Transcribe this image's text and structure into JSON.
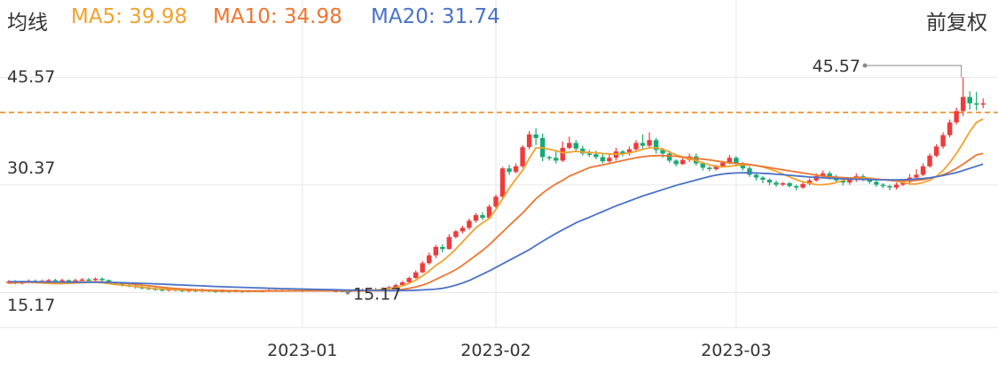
{
  "header": {
    "title": "均线",
    "adjust": "前复权",
    "ma": [
      {
        "label": "MA5:",
        "value": "39.98",
        "color": "#f0a22e"
      },
      {
        "label": "MA10:",
        "value": "34.98",
        "color": "#ec7631"
      },
      {
        "label": "MA20:",
        "value": "31.74",
        "color": "#4a72c9"
      }
    ]
  },
  "colors": {
    "up": "#ee3b3b",
    "down": "#1aa872",
    "ref_line": "#f08a24",
    "grid": "#e6e6e6",
    "text": "#333333"
  },
  "chart_data": {
    "type": "candlestick",
    "y_ticks": [
      "45.57",
      "30.37",
      "15.17"
    ],
    "ylim": [
      10.2,
      51.5
    ],
    "x_ticks": [
      {
        "label": "2023-01",
        "index": 44
      },
      {
        "label": "2023-02",
        "index": 73
      },
      {
        "label": "2023-03",
        "index": 109
      }
    ],
    "reference_line": 40.6,
    "max_annotation": {
      "label": "45.57",
      "index": 143,
      "value": 45.57
    },
    "min_annotation": {
      "label": "15.17",
      "index": 51,
      "value": 15.17
    },
    "candles": [
      [
        16.6,
        16.7,
        16.9,
        16.4
      ],
      [
        16.7,
        16.5,
        16.9,
        16.3
      ],
      [
        16.5,
        16.6,
        16.8,
        16.3
      ],
      [
        16.6,
        16.8,
        17.0,
        16.5
      ],
      [
        16.8,
        16.7,
        17.0,
        16.5
      ],
      [
        16.7,
        16.8,
        17.0,
        16.6
      ],
      [
        16.8,
        16.9,
        17.1,
        16.7
      ],
      [
        16.9,
        16.8,
        17.1,
        16.6
      ],
      [
        16.8,
        16.9,
        17.1,
        16.7
      ],
      [
        16.9,
        16.8,
        17.0,
        16.6
      ],
      [
        16.8,
        16.9,
        17.1,
        16.7
      ],
      [
        16.9,
        17.0,
        17.2,
        16.8
      ],
      [
        17.0,
        16.9,
        17.2,
        16.7
      ],
      [
        16.9,
        17.1,
        17.3,
        16.8
      ],
      [
        17.1,
        16.9,
        17.3,
        16.7
      ],
      [
        16.9,
        16.6,
        17.0,
        16.4
      ],
      [
        16.6,
        16.4,
        16.7,
        16.2
      ],
      [
        16.4,
        16.2,
        16.6,
        16.0
      ],
      [
        16.2,
        16.1,
        16.4,
        15.9
      ],
      [
        16.1,
        15.9,
        16.3,
        15.7
      ],
      [
        15.9,
        15.8,
        16.1,
        15.6
      ],
      [
        15.8,
        15.7,
        16.0,
        15.5
      ],
      [
        15.7,
        15.6,
        15.9,
        15.4
      ],
      [
        15.6,
        15.5,
        15.8,
        15.3
      ],
      [
        15.5,
        15.6,
        15.8,
        15.3
      ],
      [
        15.6,
        15.5,
        15.8,
        15.3
      ],
      [
        15.5,
        15.4,
        15.7,
        15.2
      ],
      [
        15.4,
        15.5,
        15.7,
        15.2
      ],
      [
        15.5,
        15.4,
        15.7,
        15.2
      ],
      [
        15.4,
        15.5,
        15.7,
        15.2
      ],
      [
        15.5,
        15.4,
        15.6,
        15.2
      ],
      [
        15.4,
        15.3,
        15.6,
        15.1
      ],
      [
        15.3,
        15.4,
        15.6,
        15.2
      ],
      [
        15.4,
        15.3,
        15.5,
        15.1
      ],
      [
        15.3,
        15.4,
        15.6,
        15.2
      ],
      [
        15.4,
        15.3,
        15.5,
        15.1
      ],
      [
        15.3,
        15.4,
        15.5,
        15.2
      ],
      [
        15.4,
        15.3,
        15.5,
        15.2
      ],
      [
        15.3,
        15.4,
        15.5,
        15.2
      ],
      [
        15.4,
        15.5,
        15.7,
        15.3
      ],
      [
        15.5,
        15.4,
        15.6,
        15.3
      ],
      [
        15.4,
        15.5,
        15.6,
        15.3
      ],
      [
        15.5,
        15.4,
        15.6,
        15.3
      ],
      [
        15.4,
        15.5,
        15.6,
        15.3
      ],
      [
        15.5,
        15.4,
        15.6,
        15.2
      ],
      [
        15.4,
        15.5,
        15.6,
        15.3
      ],
      [
        15.5,
        15.4,
        15.6,
        15.3
      ],
      [
        15.4,
        15.5,
        15.6,
        15.3
      ],
      [
        15.5,
        15.4,
        15.6,
        15.3
      ],
      [
        15.4,
        15.4,
        15.6,
        15.3
      ],
      [
        15.4,
        15.3,
        15.5,
        15.2
      ],
      [
        15.3,
        15.4,
        15.5,
        15.17
      ],
      [
        15.4,
        15.5,
        15.6,
        15.3
      ],
      [
        15.5,
        15.5,
        15.7,
        15.4
      ],
      [
        15.5,
        15.6,
        15.7,
        15.4
      ],
      [
        15.6,
        15.5,
        15.8,
        15.4
      ],
      [
        15.5,
        15.7,
        15.9,
        15.4
      ],
      [
        15.7,
        15.9,
        16.1,
        15.6
      ],
      [
        15.9,
        16.2,
        16.4,
        15.8
      ],
      [
        16.2,
        16.6,
        16.8,
        16.1
      ],
      [
        16.6,
        17.2,
        17.4,
        16.5
      ],
      [
        17.2,
        18.0,
        18.3,
        17.1
      ],
      [
        18.0,
        19.3,
        19.6,
        17.9
      ],
      [
        19.3,
        20.4,
        20.8,
        19.1
      ],
      [
        20.4,
        21.6,
        21.9,
        20.0
      ],
      [
        21.6,
        21.3,
        22.0,
        20.8
      ],
      [
        21.3,
        23.0,
        23.4,
        21.2
      ],
      [
        23.0,
        23.8,
        24.0,
        22.8
      ],
      [
        23.8,
        24.3,
        24.6,
        23.5
      ],
      [
        24.3,
        25.3,
        25.6,
        24.0
      ],
      [
        25.3,
        26.1,
        26.4,
        25.0
      ],
      [
        26.1,
        25.7,
        26.5,
        25.4
      ],
      [
        25.7,
        27.3,
        27.6,
        25.6
      ],
      [
        27.3,
        28.7,
        29.0,
        27.1
      ],
      [
        28.7,
        32.7,
        32.9,
        28.5
      ],
      [
        32.7,
        32.2,
        33.2,
        31.8
      ],
      [
        32.2,
        33.0,
        33.4,
        32.0
      ],
      [
        33.0,
        35.7,
        36.0,
        32.8
      ],
      [
        35.7,
        37.5,
        38.0,
        35.4
      ],
      [
        37.5,
        37.0,
        38.4,
        36.0
      ],
      [
        37.0,
        34.3,
        37.6,
        33.7
      ],
      [
        34.3,
        34.2,
        34.5,
        33.8
      ],
      [
        34.2,
        33.8,
        35.1,
        33.4
      ],
      [
        33.8,
        35.6,
        36.5,
        33.6
      ],
      [
        35.6,
        36.3,
        37.2,
        35.4
      ],
      [
        36.3,
        35.5,
        36.7,
        35.0
      ],
      [
        35.5,
        34.8,
        35.9,
        34.5
      ],
      [
        34.8,
        34.7,
        35.3,
        34.3
      ],
      [
        34.7,
        34.3,
        35.2,
        34.0
      ],
      [
        34.3,
        33.7,
        34.8,
        33.4
      ],
      [
        33.7,
        34.2,
        34.7,
        33.3
      ],
      [
        34.2,
        35.1,
        35.6,
        33.8
      ],
      [
        35.1,
        34.8,
        35.3,
        34.4
      ],
      [
        34.8,
        35.4,
        35.8,
        34.5
      ],
      [
        35.4,
        36.3,
        36.7,
        35.2
      ],
      [
        36.3,
        35.9,
        37.5,
        35.5
      ],
      [
        35.9,
        36.7,
        37.8,
        35.6
      ],
      [
        36.7,
        35.3,
        37.0,
        34.8
      ],
      [
        35.3,
        34.8,
        35.6,
        34.2
      ],
      [
        34.8,
        33.8,
        35.2,
        33.5
      ],
      [
        33.8,
        33.3,
        34.0,
        33.0
      ],
      [
        33.3,
        33.9,
        34.3,
        33.2
      ],
      [
        33.9,
        34.4,
        34.8,
        33.6
      ],
      [
        34.4,
        33.4,
        34.8,
        33.1
      ],
      [
        33.4,
        32.8,
        33.6,
        32.4
      ],
      [
        32.8,
        32.6,
        33.0,
        32.3
      ],
      [
        32.6,
        33.0,
        33.2,
        32.4
      ],
      [
        33.0,
        33.5,
        33.8,
        32.8
      ],
      [
        33.5,
        34.2,
        34.6,
        33.3
      ],
      [
        34.2,
        33.4,
        34.4,
        33.1
      ],
      [
        33.4,
        32.7,
        33.6,
        32.4
      ],
      [
        32.7,
        31.8,
        33.0,
        31.5
      ],
      [
        31.8,
        31.4,
        32.0,
        31.0
      ],
      [
        31.4,
        31.1,
        31.6,
        30.6
      ],
      [
        31.1,
        30.7,
        31.3,
        30.3
      ],
      [
        30.7,
        30.4,
        31.0,
        30.1
      ],
      [
        30.4,
        30.6,
        30.8,
        30.2
      ],
      [
        30.6,
        30.2,
        30.8,
        30.0
      ],
      [
        30.2,
        30.0,
        30.4,
        29.6
      ],
      [
        30.0,
        30.5,
        30.8,
        29.8
      ],
      [
        30.5,
        31.0,
        31.3,
        30.3
      ],
      [
        31.0,
        31.6,
        32.0,
        30.8
      ],
      [
        31.6,
        32.0,
        32.4,
        31.3
      ],
      [
        32.0,
        31.5,
        32.3,
        31.1
      ],
      [
        31.5,
        31.0,
        31.8,
        30.6
      ],
      [
        31.0,
        30.7,
        31.2,
        30.3
      ],
      [
        30.7,
        31.1,
        31.4,
        30.4
      ],
      [
        31.1,
        31.6,
        32.0,
        30.8
      ],
      [
        31.6,
        31.2,
        31.9,
        30.9
      ],
      [
        31.2,
        30.8,
        31.4,
        30.5
      ],
      [
        30.8,
        30.4,
        31.0,
        30.1
      ],
      [
        30.4,
        30.2,
        30.6,
        29.9
      ],
      [
        30.2,
        30.0,
        30.4,
        29.6
      ],
      [
        30.0,
        30.4,
        30.7,
        29.7
      ],
      [
        30.4,
        30.8,
        31.1,
        30.2
      ],
      [
        30.8,
        31.4,
        31.9,
        30.6
      ],
      [
        31.4,
        31.8,
        32.6,
        31.2
      ],
      [
        31.8,
        33.0,
        33.4,
        31.6
      ],
      [
        33.0,
        34.5,
        34.8,
        32.8
      ],
      [
        34.5,
        35.8,
        36.1,
        34.3
      ],
      [
        35.8,
        37.4,
        37.8,
        35.5
      ],
      [
        37.4,
        39.2,
        39.6,
        37.1
      ],
      [
        39.2,
        40.8,
        41.3,
        38.9
      ],
      [
        40.8,
        42.8,
        45.57,
        40.1
      ],
      [
        42.8,
        41.9,
        43.6,
        41.0
      ],
      [
        41.9,
        41.8,
        43.5,
        40.9
      ],
      [
        41.8,
        41.9,
        42.6,
        41.2
      ]
    ],
    "series": [
      {
        "name": "MA5",
        "color": "#f0a22e",
        "values": [
          16.45,
          16.55,
          16.6,
          16.6,
          16.55,
          16.5,
          16.45,
          16.4,
          16.4,
          16.45,
          16.5,
          16.55,
          16.6,
          16.6,
          16.55,
          16.4,
          16.3,
          16.2,
          16.1,
          16.0,
          15.9,
          15.8,
          15.7,
          15.65,
          15.6,
          15.55,
          15.5,
          15.5,
          15.48,
          15.45,
          15.4,
          15.38,
          15.38,
          15.36,
          15.35,
          15.35,
          15.35,
          15.36,
          15.38,
          15.4,
          15.4,
          15.4,
          15.41,
          15.42,
          15.42,
          15.42,
          15.42,
          15.42,
          15.42,
          15.42,
          15.4,
          15.38,
          15.38,
          15.4,
          15.45,
          15.5,
          15.58,
          15.7,
          15.85,
          16.1,
          16.45,
          16.9,
          17.5,
          18.2,
          19.0,
          19.6,
          20.4,
          21.3,
          22.3,
          23.3,
          24.3,
          25.0,
          25.6,
          26.9,
          28.4,
          29.9,
          31.2,
          32.4,
          34.1,
          35.6,
          35.6,
          35.4,
          35.2,
          34.9,
          35.0,
          35.1,
          35.0,
          34.95,
          34.9,
          34.8,
          34.75,
          34.7,
          34.75,
          34.9,
          35.1,
          35.4,
          35.6,
          35.6,
          35.4,
          35.0,
          34.6,
          34.3,
          34.0,
          33.8,
          33.5,
          33.2,
          33.0,
          32.9,
          33.0,
          33.1,
          33.2,
          33.2,
          33.1,
          32.9,
          32.6,
          32.3,
          31.9,
          31.5,
          31.1,
          30.8,
          30.6,
          30.4,
          30.4,
          30.5,
          30.7,
          31.0,
          31.3,
          31.4,
          31.4,
          31.3,
          31.2,
          31.1,
          31.0,
          30.9,
          30.7,
          30.5,
          30.5,
          30.7,
          31.0,
          31.6,
          32.4,
          33.5,
          34.8,
          36.3,
          37.9,
          39.2,
          39.7,
          39.98
        ]
      },
      {
        "name": "MA10",
        "color": "#ec7631",
        "values": [
          16.5,
          16.55,
          16.6,
          16.62,
          16.62,
          16.6,
          16.6,
          16.6,
          16.6,
          16.62,
          16.64,
          16.65,
          16.66,
          16.66,
          16.64,
          16.6,
          16.55,
          16.48,
          16.4,
          16.3,
          16.2,
          16.1,
          16.0,
          15.9,
          15.8,
          15.72,
          15.66,
          15.6,
          15.55,
          15.52,
          15.48,
          15.45,
          15.43,
          15.42,
          15.4,
          15.38,
          15.37,
          15.37,
          15.37,
          15.37,
          15.37,
          15.37,
          15.38,
          15.38,
          15.39,
          15.39,
          15.4,
          15.4,
          15.4,
          15.4,
          15.4,
          15.39,
          15.39,
          15.39,
          15.4,
          15.41,
          15.42,
          15.45,
          15.5,
          15.6,
          15.75,
          15.95,
          16.2,
          16.55,
          17.0,
          17.45,
          17.9,
          18.4,
          19.0,
          19.7,
          20.4,
          21.1,
          21.9,
          22.8,
          23.7,
          24.6,
          25.5,
          26.4,
          27.4,
          28.4,
          29.2,
          29.9,
          30.5,
          31.0,
          31.6,
          32.0,
          32.4,
          32.8,
          33.0,
          33.2,
          33.4,
          33.6,
          33.8,
          34.0,
          34.2,
          34.35,
          34.45,
          34.5,
          34.5,
          34.45,
          34.4,
          34.3,
          34.2,
          34.1,
          34.0,
          33.9,
          33.75,
          33.6,
          33.5,
          33.4,
          33.35,
          33.25,
          33.1,
          32.95,
          32.8,
          32.65,
          32.5,
          32.35,
          32.2,
          32.05,
          31.9,
          31.75,
          31.6,
          31.5,
          31.45,
          31.4,
          31.35,
          31.3,
          31.25,
          31.2,
          31.15,
          31.1,
          31.05,
          31.0,
          30.95,
          30.95,
          31.0,
          31.1,
          31.3,
          31.5,
          31.8,
          32.2,
          32.7,
          33.3,
          33.95,
          34.6,
          34.8,
          34.98
        ]
      },
      {
        "name": "MA20",
        "color": "#4a72c9",
        "values": [
          16.7,
          16.7,
          16.69,
          16.68,
          16.67,
          16.66,
          16.65,
          16.64,
          16.63,
          16.62,
          16.61,
          16.6,
          16.6,
          16.6,
          16.59,
          16.58,
          16.56,
          16.54,
          16.51,
          16.48,
          16.45,
          16.41,
          16.37,
          16.33,
          16.29,
          16.25,
          16.21,
          16.17,
          16.13,
          16.09,
          16.05,
          16.01,
          15.97,
          15.94,
          15.91,
          15.88,
          15.85,
          15.82,
          15.79,
          15.76,
          15.73,
          15.7,
          15.68,
          15.66,
          15.64,
          15.62,
          15.6,
          15.58,
          15.56,
          15.54,
          15.52,
          15.5,
          15.48,
          15.46,
          15.45,
          15.44,
          15.43,
          15.42,
          15.42,
          15.43,
          15.45,
          15.48,
          15.52,
          15.57,
          15.63,
          15.75,
          15.95,
          16.2,
          16.5,
          16.85,
          17.3,
          17.75,
          18.2,
          18.7,
          19.2,
          19.7,
          20.2,
          20.7,
          21.2,
          21.8,
          22.4,
          22.95,
          23.5,
          24.0,
          24.5,
          25.0,
          25.4,
          25.8,
          26.2,
          26.6,
          27.0,
          27.4,
          27.75,
          28.1,
          28.45,
          28.8,
          29.1,
          29.4,
          29.7,
          30.0,
          30.3,
          30.55,
          30.8,
          31.05,
          31.3,
          31.55,
          31.75,
          31.9,
          32.0,
          32.05,
          32.08,
          32.08,
          32.05,
          32.0,
          31.95,
          31.88,
          31.8,
          31.72,
          31.64,
          31.56,
          31.48,
          31.42,
          31.36,
          31.3,
          31.26,
          31.22,
          31.19,
          31.16,
          31.14,
          31.12,
          31.1,
          31.09,
          31.08,
          31.08,
          31.1,
          31.14,
          31.2,
          31.28,
          31.38,
          31.52,
          31.7,
          31.9,
          32.1,
          32.4,
          32.7,
          33.0,
          33.3,
          31.74
        ]
      }
    ]
  }
}
